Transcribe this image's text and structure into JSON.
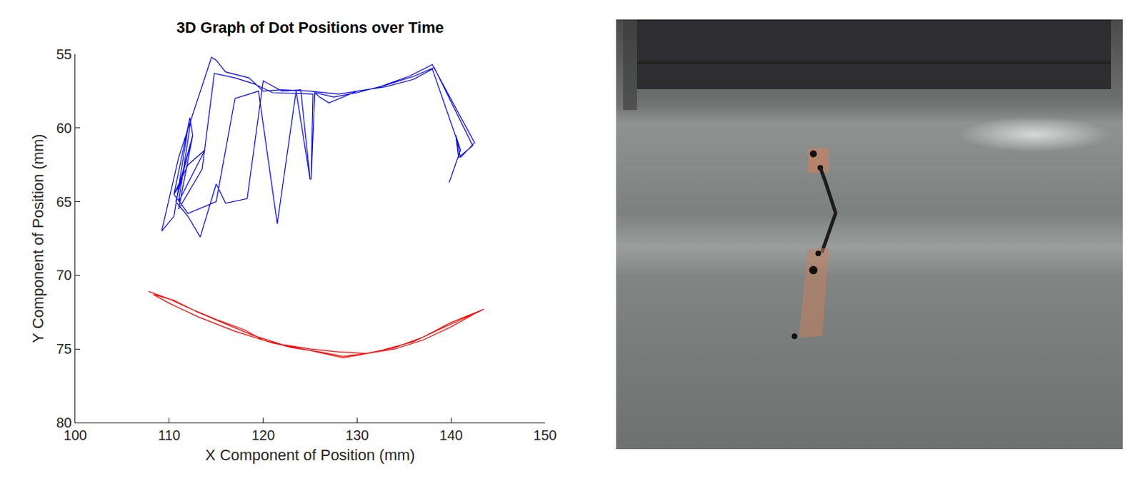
{
  "chart_data": {
    "type": "line",
    "title": "3D Graph of Dot Positions over Time",
    "x_label": "X Component of Position (mm)",
    "y_label": "Y Component of Position (mm)",
    "xlim": [
      100,
      150
    ],
    "xticks": [
      100,
      110,
      120,
      130,
      140,
      150
    ],
    "ylim": [
      80,
      55
    ],
    "yticks": [
      55,
      60,
      65,
      70,
      75,
      80
    ],
    "grid": false,
    "series": [
      {
        "color": "#0000ff",
        "x": [
          139.8,
          141,
          140.5,
          141,
          142.5,
          138,
          135.5,
          132,
          128,
          125,
          122,
          120,
          118.5,
          116,
          115,
          114.5,
          111,
          109.2,
          110.5,
          112,
          112.3,
          111,
          113.8,
          112,
          110.5,
          111,
          112.5,
          110.7,
          112,
          113.3,
          115,
          116,
          118.3,
          120,
          122,
          124,
          125,
          123.5,
          121.5,
          119.5,
          117,
          115,
          112,
          110.5,
          112.2,
          112.5,
          111,
          113.5,
          114.8,
          117,
          119,
          121,
          125.3,
          125.1,
          125.5,
          127.5,
          130,
          133,
          136,
          138.2,
          142.3,
          140.8,
          140.5,
          141,
          138,
          136,
          133,
          130,
          127,
          126,
          125.5
        ],
        "values": [
          63.7,
          61.5,
          60.5,
          62,
          61,
          55.7,
          56.5,
          57.3,
          57.7,
          57.5,
          57.4,
          57.5,
          56.6,
          56.2,
          55.4,
          55.2,
          62,
          67,
          66,
          60,
          59.5,
          65,
          61.5,
          62.5,
          64.5,
          64,
          60.5,
          65,
          66,
          67.4,
          63.8,
          65.1,
          64.8,
          56.8,
          57.5,
          57.4,
          63.5,
          57.5,
          66.5,
          57.5,
          58,
          65,
          65.8,
          64.5,
          59.3,
          60.5,
          65.5,
          62.8,
          56.3,
          56.6,
          57,
          57.6,
          57.7,
          63.5,
          57.6,
          57.9,
          57.6,
          57.1,
          56.5,
          55.9,
          61.2,
          62,
          60.5,
          61.5,
          56,
          56.7,
          57.2,
          57.5,
          58.3,
          57.9,
          57.6
        ]
      },
      {
        "color": "#ff0000",
        "x": [
          107.8,
          110,
          112,
          115,
          118,
          120,
          123,
          126,
          128.5,
          131,
          134,
          137,
          140,
          142,
          143.5,
          142.5,
          140,
          137,
          134,
          131,
          128,
          125,
          122,
          119,
          116,
          113,
          110.5,
          108.3,
          110,
          113,
          117,
          121,
          125,
          128.5,
          132,
          136,
          139,
          141.5,
          143.2
        ],
        "values": [
          71.1,
          71.6,
          72.2,
          73,
          73.7,
          74.4,
          74.9,
          75.2,
          75.5,
          75.3,
          74.9,
          74.2,
          73.2,
          72.7,
          72.3,
          72.6,
          73.5,
          74.4,
          75,
          75.3,
          75.2,
          75,
          74.7,
          74.1,
          73.3,
          72.5,
          71.7,
          71.3,
          71.9,
          72.8,
          73.8,
          74.6,
          75.1,
          75.6,
          75.2,
          74.5,
          73.6,
          72.9,
          72.4
        ]
      }
    ]
  }
}
